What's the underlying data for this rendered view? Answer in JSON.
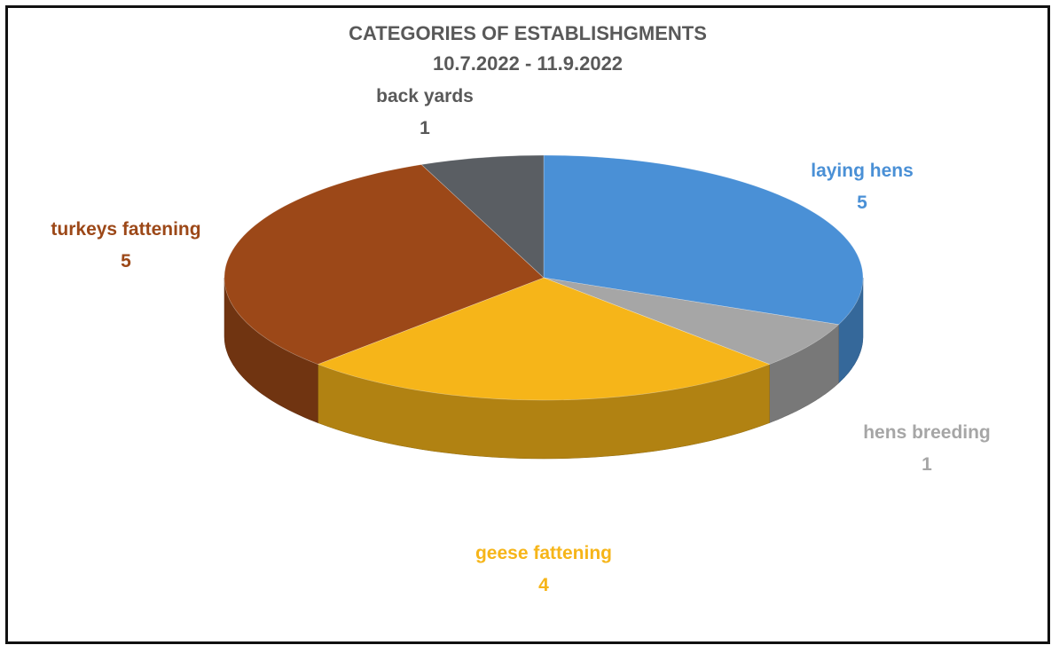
{
  "chart_data": {
    "type": "pie",
    "title": "CATEGORIES OF ESTABLISHGMENTS",
    "subtitle": "10.7.2022 - 11.9.2022",
    "slices": [
      {
        "label": "laying hens",
        "value": 5,
        "color": "#4A90D6"
      },
      {
        "label": "hens breeding",
        "value": 1,
        "color": "#A6A6A6"
      },
      {
        "label": "geese fattening",
        "value": 4,
        "color": "#F6B519"
      },
      {
        "label": "turkeys fattening",
        "value": 5,
        "color": "#9C4818"
      },
      {
        "label": "back yards",
        "value": 1,
        "color": "#5A5E63"
      }
    ],
    "legend": "none",
    "style": "3d"
  }
}
